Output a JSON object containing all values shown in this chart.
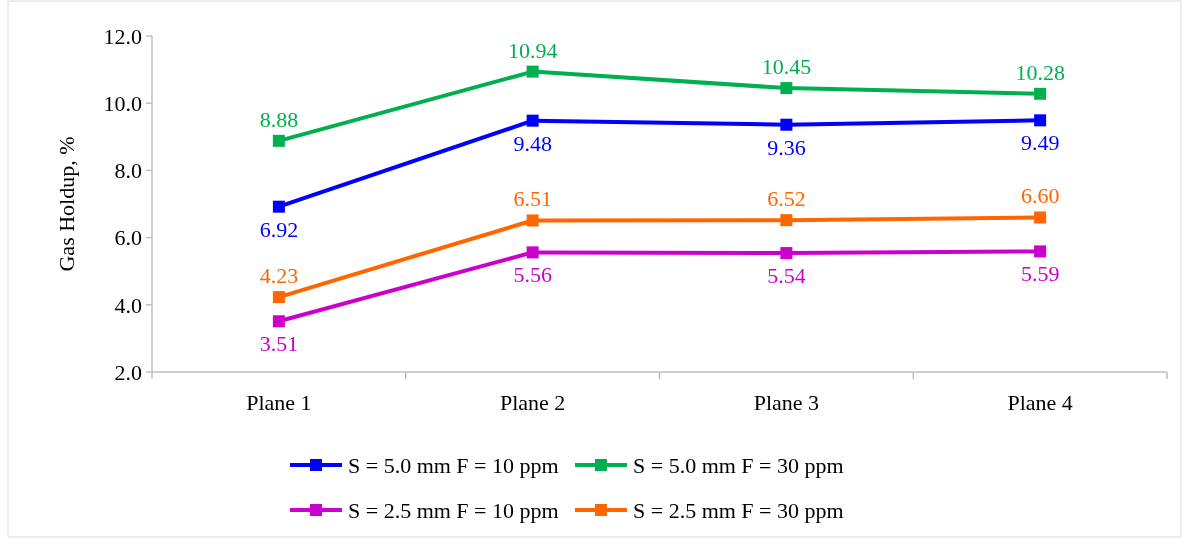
{
  "chart_data": {
    "type": "line",
    "ylabel": "Gas Holdup, %",
    "categories": [
      "Plane 1",
      "Plane 2",
      "Plane 3",
      "Plane 4"
    ],
    "ylim": [
      2,
      12
    ],
    "yticks": [
      {
        "value": 2,
        "label": "2.0"
      },
      {
        "value": 4,
        "label": "4.0"
      },
      {
        "value": 6,
        "label": "6.0"
      },
      {
        "value": 8,
        "label": "8.0"
      },
      {
        "value": 10,
        "label": "10.0"
      },
      {
        "value": 12,
        "label": "12.0"
      }
    ],
    "grid": false,
    "legend": "bottom",
    "marker": "square",
    "line_style": "solid",
    "series": [
      {
        "name": "S = 5.0 mm F = 10 ppm",
        "color": "#0000ff",
        "values": [
          6.92,
          9.48,
          9.36,
          9.49
        ],
        "value_labels": [
          "6.92",
          "9.48",
          "9.36",
          "9.49"
        ]
      },
      {
        "name": "S = 5.0 mm F = 30 ppm",
        "color": "#00b050",
        "values": [
          8.88,
          10.94,
          10.45,
          10.28
        ],
        "value_labels": [
          "8.88",
          "10.94",
          "10.45",
          "10.28"
        ]
      },
      {
        "name": "S = 2.5 mm F = 10 ppm",
        "color": "#cc00cc",
        "values": [
          3.51,
          5.56,
          5.54,
          5.59
        ],
        "value_labels": [
          "3.51",
          "5.56",
          "5.54",
          "5.59"
        ]
      },
      {
        "name": "S = 2.5 mm F = 30 ppm",
        "color": "#ff6600",
        "values": [
          4.23,
          6.51,
          6.52,
          6.6
        ],
        "value_labels": [
          "4.23",
          "6.51",
          "6.52",
          "6.60"
        ]
      }
    ]
  }
}
